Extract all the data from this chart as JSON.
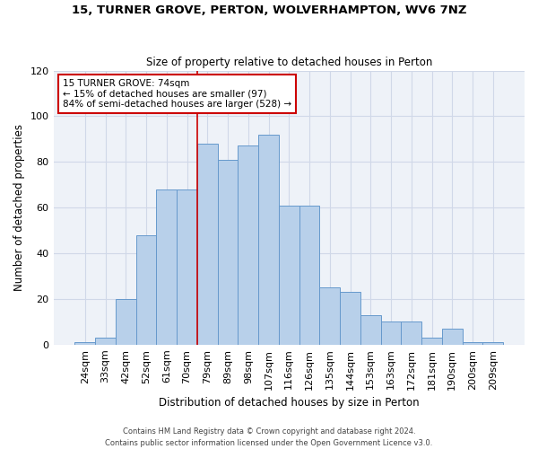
{
  "title_line1": "15, TURNER GROVE, PERTON, WOLVERHAMPTON, WV6 7NZ",
  "title_line2": "Size of property relative to detached houses in Perton",
  "xlabel": "Distribution of detached houses by size in Perton",
  "ylabel": "Number of detached properties",
  "categories": [
    "24sqm",
    "33sqm",
    "42sqm",
    "52sqm",
    "61sqm",
    "70sqm",
    "79sqm",
    "89sqm",
    "98sqm",
    "107sqm",
    "116sqm",
    "126sqm",
    "135sqm",
    "144sqm",
    "153sqm",
    "163sqm",
    "172sqm",
    "181sqm",
    "190sqm",
    "200sqm",
    "209sqm"
  ],
  "values": [
    1,
    3,
    20,
    48,
    68,
    68,
    88,
    81,
    87,
    92,
    61,
    61,
    25,
    23,
    13,
    10,
    10,
    3,
    7,
    1,
    1
  ],
  "bar_color": "#b8d0ea",
  "bar_edge_color": "#6699cc",
  "grid_color": "#d0d8e8",
  "vline_color": "#cc0000",
  "annotation_text": "15 TURNER GROVE: 74sqm\n← 15% of detached houses are smaller (97)\n84% of semi-detached houses are larger (528) →",
  "annotation_box_color": "white",
  "annotation_box_edge": "#cc0000",
  "ylim": [
    0,
    120
  ],
  "yticks": [
    0,
    20,
    40,
    60,
    80,
    100,
    120
  ],
  "footer_line1": "Contains HM Land Registry data © Crown copyright and database right 2024.",
  "footer_line2": "Contains public sector information licensed under the Open Government Licence v3.0.",
  "bg_color": "#eef2f8",
  "fig_width": 6.0,
  "fig_height": 5.0,
  "dpi": 100
}
